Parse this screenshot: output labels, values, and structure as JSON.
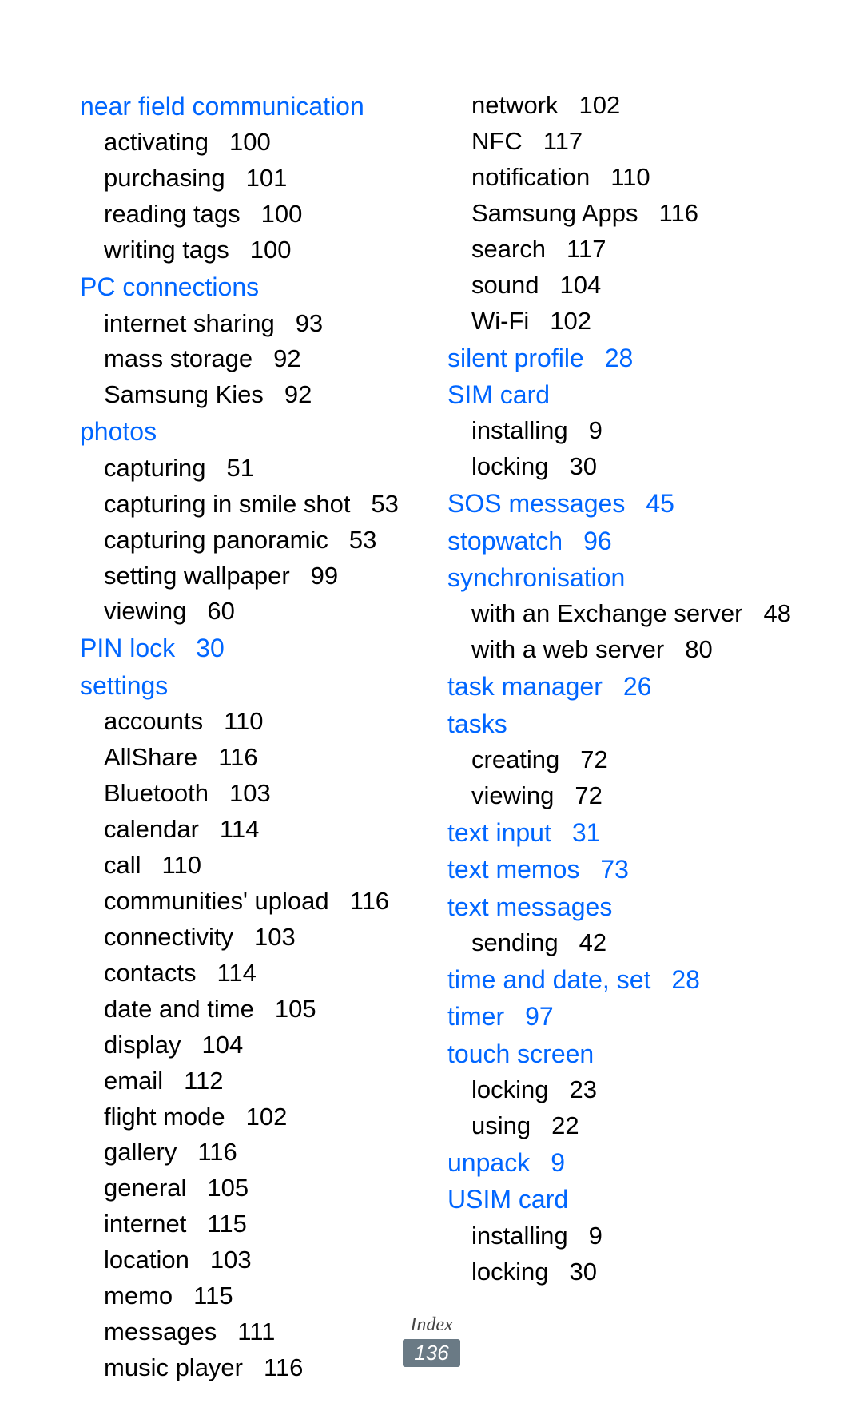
{
  "footer": {
    "section": "Index",
    "page": "136"
  },
  "left": [
    {
      "type": "h",
      "label": "near field communication"
    },
    {
      "type": "s",
      "label": "activating",
      "page": "100"
    },
    {
      "type": "s",
      "label": "purchasing",
      "page": "101"
    },
    {
      "type": "s",
      "label": "reading tags",
      "page": "100"
    },
    {
      "type": "s",
      "label": "writing tags",
      "page": "100"
    },
    {
      "type": "h",
      "label": "PC connections"
    },
    {
      "type": "s",
      "label": "internet sharing",
      "page": "93"
    },
    {
      "type": "s",
      "label": "mass storage",
      "page": "92"
    },
    {
      "type": "s",
      "label": "Samsung Kies",
      "page": "92"
    },
    {
      "type": "h",
      "label": "photos"
    },
    {
      "type": "s",
      "label": "capturing",
      "page": "51"
    },
    {
      "type": "s",
      "label": "capturing in smile shot",
      "page": "53"
    },
    {
      "type": "s",
      "label": "capturing panoramic",
      "page": "53"
    },
    {
      "type": "s",
      "label": "setting wallpaper",
      "page": "99"
    },
    {
      "type": "s",
      "label": "viewing",
      "page": "60"
    },
    {
      "type": "hp",
      "label": "PIN lock",
      "page": "30"
    },
    {
      "type": "h",
      "label": "settings"
    },
    {
      "type": "s",
      "label": "accounts",
      "page": "110"
    },
    {
      "type": "s",
      "label": "AllShare",
      "page": "116"
    },
    {
      "type": "s",
      "label": "Bluetooth",
      "page": "103"
    },
    {
      "type": "s",
      "label": "calendar",
      "page": "114"
    },
    {
      "type": "s",
      "label": "call",
      "page": "110"
    },
    {
      "type": "s",
      "label": "communities' upload",
      "page": "116"
    },
    {
      "type": "s",
      "label": "connectivity",
      "page": "103"
    },
    {
      "type": "s",
      "label": "contacts",
      "page": "114"
    },
    {
      "type": "s",
      "label": "date and time",
      "page": "105"
    },
    {
      "type": "s",
      "label": "display",
      "page": "104"
    },
    {
      "type": "s",
      "label": "email",
      "page": "112"
    },
    {
      "type": "s",
      "label": "flight mode",
      "page": "102"
    },
    {
      "type": "s",
      "label": "gallery",
      "page": "116"
    },
    {
      "type": "s",
      "label": "general",
      "page": "105"
    },
    {
      "type": "s",
      "label": "internet",
      "page": "115"
    },
    {
      "type": "s",
      "label": "location",
      "page": "103"
    },
    {
      "type": "s",
      "label": "memo",
      "page": "115"
    },
    {
      "type": "s",
      "label": "messages",
      "page": "111"
    },
    {
      "type": "s",
      "label": "music player",
      "page": "116"
    }
  ],
  "right": [
    {
      "type": "s",
      "label": "network",
      "page": "102"
    },
    {
      "type": "s",
      "label": "NFC",
      "page": "117"
    },
    {
      "type": "s",
      "label": "notification",
      "page": "110"
    },
    {
      "type": "s",
      "label": "Samsung Apps",
      "page": "116"
    },
    {
      "type": "s",
      "label": "search",
      "page": "117"
    },
    {
      "type": "s",
      "label": "sound",
      "page": "104"
    },
    {
      "type": "s",
      "label": "Wi-Fi",
      "page": "102"
    },
    {
      "type": "hp",
      "label": "silent profile",
      "page": "28"
    },
    {
      "type": "h",
      "label": "SIM card"
    },
    {
      "type": "s",
      "label": "installing",
      "page": "9"
    },
    {
      "type": "s",
      "label": "locking",
      "page": "30"
    },
    {
      "type": "hp",
      "label": "SOS messages",
      "page": "45"
    },
    {
      "type": "hp",
      "label": "stopwatch",
      "page": "96"
    },
    {
      "type": "h",
      "label": "synchronisation"
    },
    {
      "type": "s",
      "label": "with an Exchange server",
      "page": "48"
    },
    {
      "type": "s",
      "label": "with a web server",
      "page": "80"
    },
    {
      "type": "hp",
      "label": "task manager",
      "page": "26"
    },
    {
      "type": "h",
      "label": "tasks"
    },
    {
      "type": "s",
      "label": "creating",
      "page": "72"
    },
    {
      "type": "s",
      "label": "viewing",
      "page": "72"
    },
    {
      "type": "hp",
      "label": "text input",
      "page": "31"
    },
    {
      "type": "hp",
      "label": "text memos",
      "page": "73"
    },
    {
      "type": "h",
      "label": "text messages"
    },
    {
      "type": "s",
      "label": "sending",
      "page": "42"
    },
    {
      "type": "hp",
      "label": "time and date, set",
      "page": "28"
    },
    {
      "type": "hp",
      "label": "timer",
      "page": "97"
    },
    {
      "type": "h",
      "label": "touch screen"
    },
    {
      "type": "s",
      "label": "locking",
      "page": "23"
    },
    {
      "type": "s",
      "label": "using",
      "page": "22"
    },
    {
      "type": "hp",
      "label": "unpack",
      "page": "9"
    },
    {
      "type": "h",
      "label": "USIM card"
    },
    {
      "type": "s",
      "label": "installing",
      "page": "9"
    },
    {
      "type": "s",
      "label": "locking",
      "page": "30"
    }
  ]
}
